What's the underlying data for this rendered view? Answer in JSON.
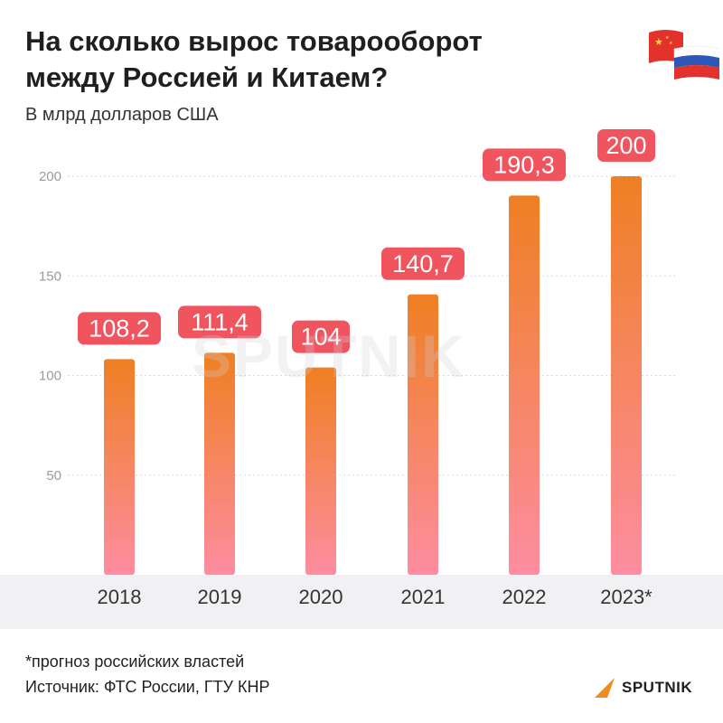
{
  "header": {
    "title_line1": "На сколько вырос товарооборот",
    "title_line2": "между Россией и Китаем?",
    "subtitle": "В млрд долларов США"
  },
  "flags": {
    "left": "china-flag-icon",
    "right": "russia-flag-icon"
  },
  "watermark": "SPUTNIK",
  "footer": {
    "footnote": "*прогноз российских властей",
    "source": "Источник: ФТС России, ГТУ КНР",
    "logo_text": "SPUTNIK"
  },
  "colors": {
    "bar_top": "#ef7f22",
    "bar_bottom": "#fd8da0",
    "label_bg": "#f0545f",
    "label_text": "#ffffff",
    "grid": "#d9d9d9",
    "axis_text": "#9a9a9a"
  },
  "chart_data": {
    "type": "bar",
    "categories": [
      "2018",
      "2019",
      "2020",
      "2021",
      "2022",
      "2023*"
    ],
    "values": [
      108.2,
      111.4,
      104,
      140.7,
      190.3,
      200
    ],
    "value_labels": [
      "108,2",
      "111,4",
      "104",
      "140,7",
      "190,3",
      "200"
    ],
    "yticks": [
      50,
      100,
      150,
      200
    ],
    "ylim": [
      0,
      200
    ],
    "grid": true,
    "title": "На сколько вырос товарооборот между Россией и Китаем?",
    "ylabel": "В млрд долларов США"
  }
}
